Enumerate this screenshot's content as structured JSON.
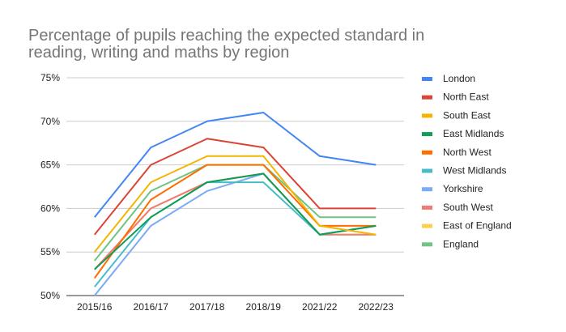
{
  "chart_data": {
    "type": "line",
    "title": "Percentage of pupils reaching the expected standard in reading, writing and maths by region",
    "xlabel": "",
    "ylabel": "",
    "categories": [
      "2015/16",
      "2016/17",
      "2017/18",
      "2018/19",
      "2021/22",
      "2022/23"
    ],
    "y_ticks": [
      "50%",
      "55%",
      "60%",
      "65%",
      "70%",
      "75%"
    ],
    "ylim": [
      50,
      75
    ],
    "grid": true,
    "legend_position": "right",
    "series": [
      {
        "name": "London",
        "color": "#4285f4",
        "values": [
          59,
          67,
          70,
          71,
          66,
          65
        ]
      },
      {
        "name": "North East",
        "color": "#db4437",
        "values": [
          57,
          65,
          68,
          67,
          60,
          60
        ]
      },
      {
        "name": "South East",
        "color": "#f4b400",
        "values": [
          55,
          63,
          66,
          66,
          58,
          57
        ]
      },
      {
        "name": "East Midlands",
        "color": "#0f9d58",
        "values": [
          53,
          59,
          63,
          64,
          57,
          58
        ]
      },
      {
        "name": "North West",
        "color": "#ff6d01",
        "values": [
          52,
          61,
          65,
          65,
          58,
          58
        ]
      },
      {
        "name": "West Midlands",
        "color": "#46bdc6",
        "values": [
          51,
          59,
          63,
          63,
          57,
          58
        ]
      },
      {
        "name": "Yorkshire",
        "color": "#7baaf7",
        "values": [
          50,
          58,
          62,
          64,
          57,
          58
        ]
      },
      {
        "name": "South West",
        "color": "#f07b72",
        "values": [
          53,
          60,
          63,
          64,
          57,
          57
        ]
      },
      {
        "name": "East of England",
        "color": "#fcd04f",
        "values": [
          53,
          60,
          63,
          64,
          57,
          57
        ]
      },
      {
        "name": "England",
        "color": "#71c287",
        "values": [
          54,
          62,
          65,
          65,
          59,
          59
        ]
      }
    ]
  }
}
